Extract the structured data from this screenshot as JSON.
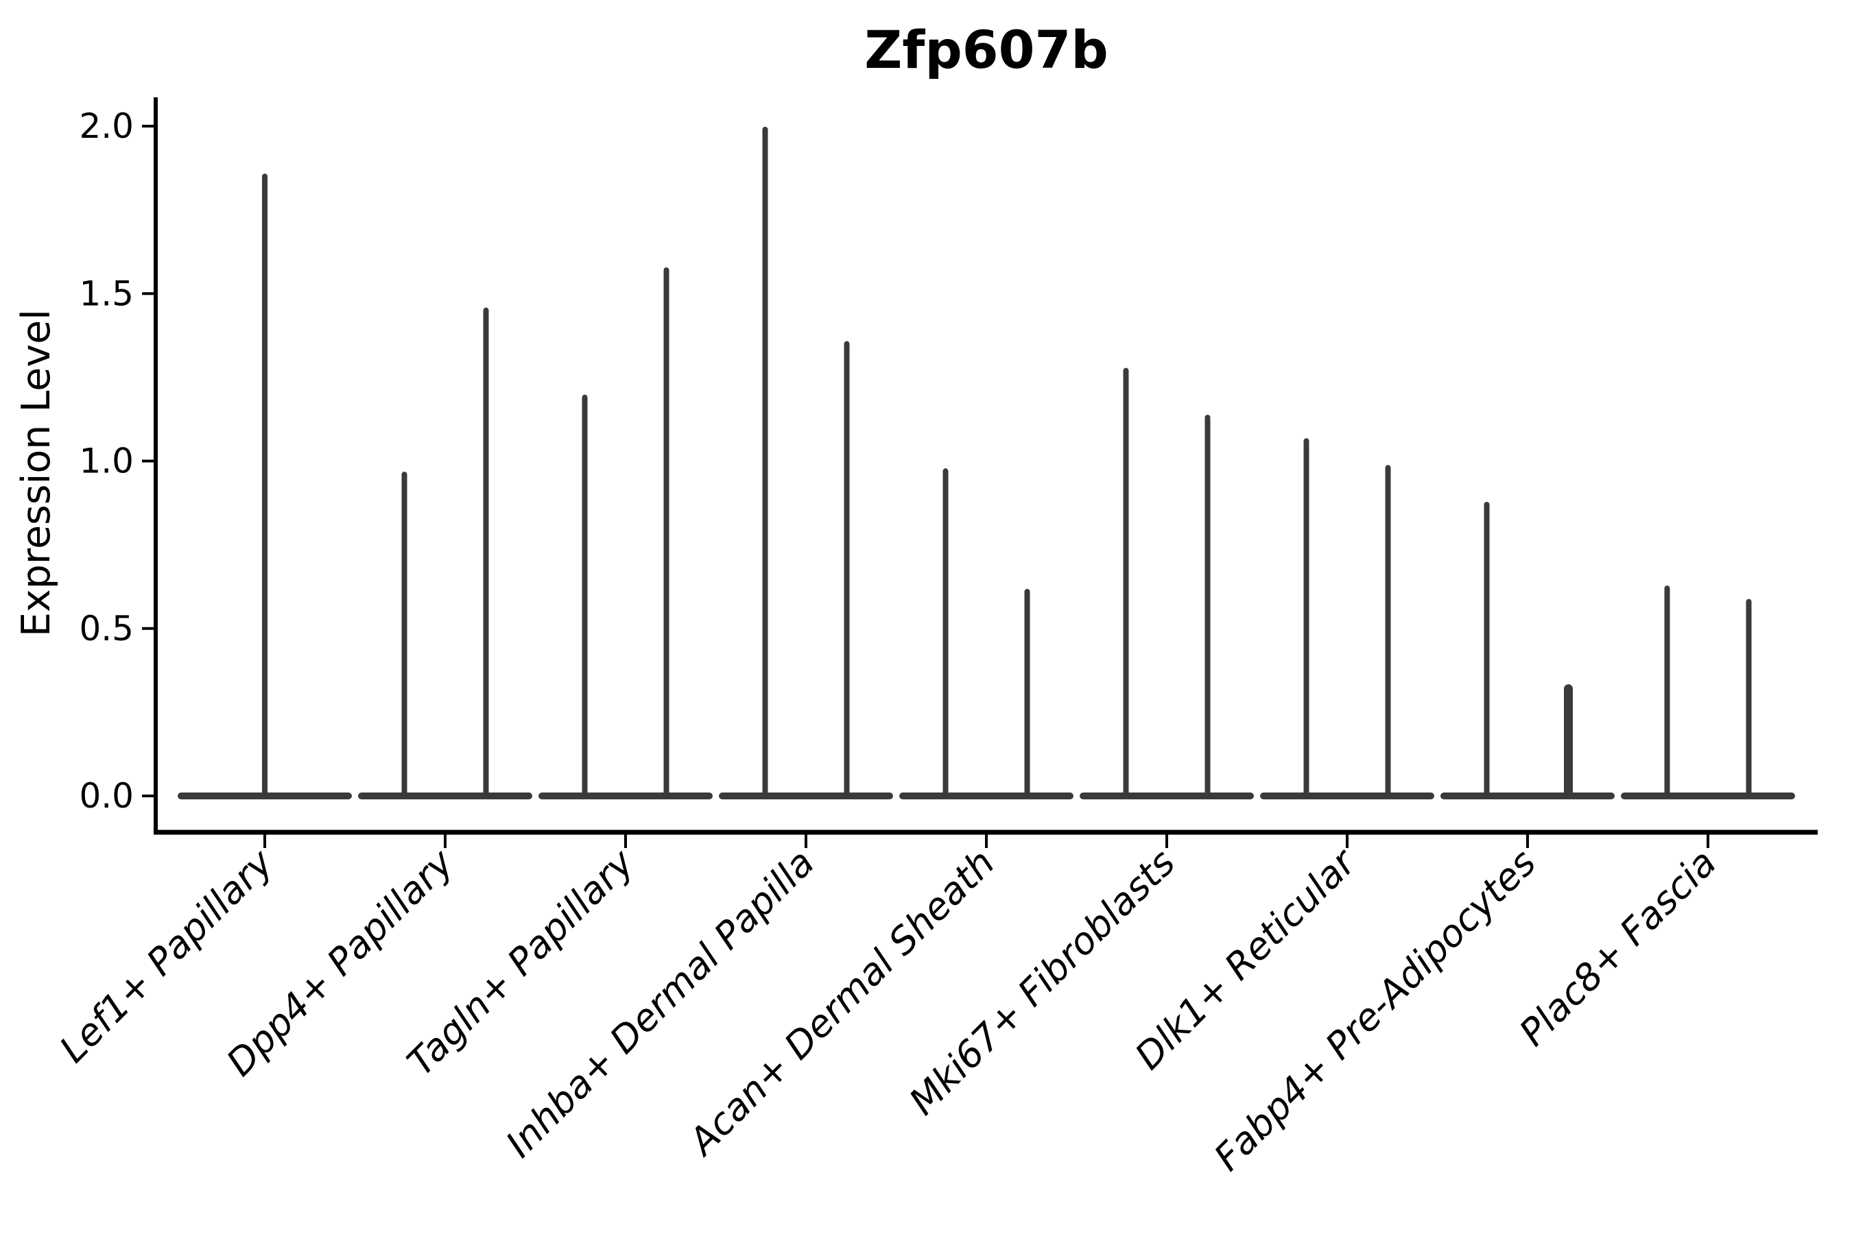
{
  "chart_data": {
    "type": "violin",
    "title": "Zfp607b",
    "ylabel": "Expression Level",
    "xlabel": "",
    "grid": false,
    "legend_position": "none",
    "ylim": [
      -0.115,
      2.085
    ],
    "ytick_labels": [
      "0.0",
      "0.5",
      "1.0",
      "1.5",
      "2.0"
    ],
    "ytick_values": [
      0.0,
      0.5,
      1.0,
      1.5,
      2.0
    ],
    "violin_color": "#3a3a3a",
    "axis_color": "#000000",
    "categories": [
      {
        "label": "Lef1+ Papillary",
        "violins": [
          {
            "slot": "center",
            "max": 1.85
          }
        ]
      },
      {
        "label": "Dpp4+ Papillary",
        "violins": [
          {
            "slot": "left",
            "max": 0.96
          },
          {
            "slot": "right",
            "max": 1.45
          }
        ]
      },
      {
        "label": "Tagln+ Papillary",
        "violins": [
          {
            "slot": "left",
            "max": 1.19
          },
          {
            "slot": "right",
            "max": 1.57
          }
        ]
      },
      {
        "label": "Inhba+ Dermal Papilla",
        "violins": [
          {
            "slot": "left",
            "max": 1.99
          },
          {
            "slot": "right",
            "max": 1.35
          }
        ]
      },
      {
        "label": "Acan+ Dermal Sheath",
        "violins": [
          {
            "slot": "left",
            "max": 0.97
          },
          {
            "slot": "right",
            "max": 0.61
          }
        ]
      },
      {
        "label": "Mki67+ Fibroblasts",
        "violins": [
          {
            "slot": "left",
            "max": 1.27
          },
          {
            "slot": "right",
            "max": 1.13
          }
        ]
      },
      {
        "label": "Dlk1+ Reticular",
        "violins": [
          {
            "slot": "left",
            "max": 1.06
          },
          {
            "slot": "right",
            "max": 0.98
          }
        ]
      },
      {
        "label": "Fabp4+ Pre-Adipocytes",
        "violins": [
          {
            "slot": "left",
            "max": 0.87
          },
          {
            "slot": "right",
            "max": 0.32,
            "thick": true,
            "beads": [
              0.29,
              0.26,
              0.21,
              0.15,
              0.09
            ]
          }
        ]
      },
      {
        "label": "Plac8+ Fascia",
        "violins": [
          {
            "slot": "left",
            "max": 0.62
          },
          {
            "slot": "right",
            "max": 0.58
          }
        ]
      }
    ]
  }
}
